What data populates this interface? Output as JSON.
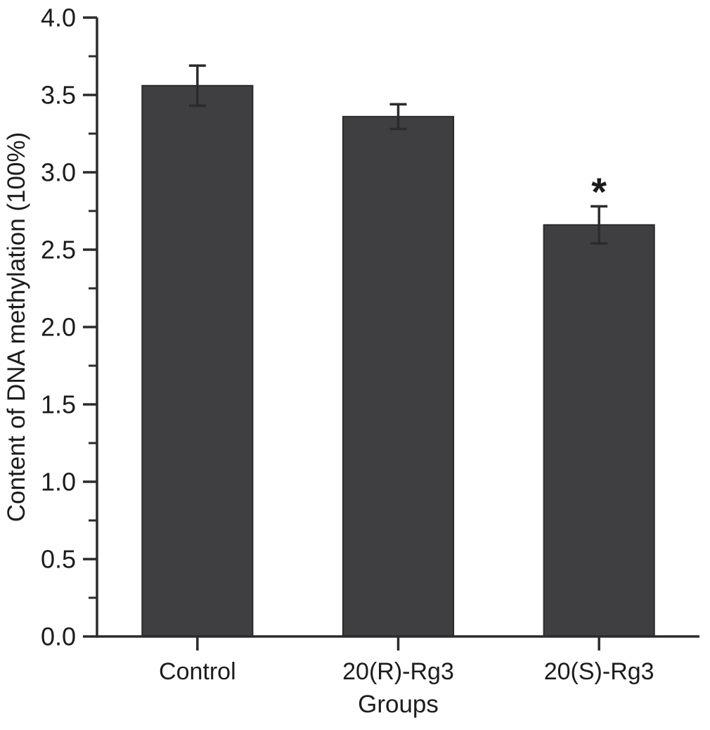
{
  "chart_data": {
    "type": "bar",
    "title": "",
    "xlabel": "Groups",
    "ylabel": "Content of DNA methylation (100%)",
    "categories": [
      "Control",
      "20(R)-Rg3",
      "20(S)-Rg3"
    ],
    "values": [
      3.56,
      3.36,
      2.66
    ],
    "errors": [
      0.13,
      0.08,
      0.12
    ],
    "ylim": [
      0,
      4
    ],
    "y_major_step": 0.5,
    "y_minor_step": 0.25,
    "y_tick_labels": [
      "0.0",
      "0.5",
      "1.0",
      "1.5",
      "2.0",
      "2.5",
      "3.0",
      "3.5",
      "4.0"
    ],
    "grid": false,
    "legend": "none",
    "bar_color": "#3f3f41",
    "bar_edge_color": "#2a2a2b",
    "axis_color": "#2b2b2b",
    "text_color": "#1c1c1c",
    "annotations": [
      {
        "text": "*",
        "category_index": 2,
        "y_value": 2.97
      }
    ]
  }
}
